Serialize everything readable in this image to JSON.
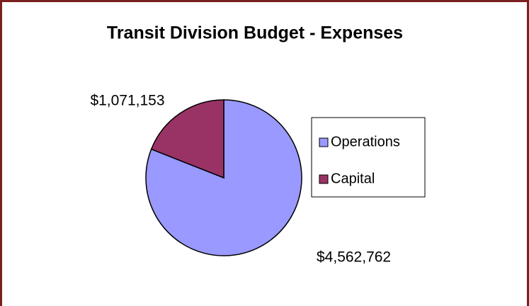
{
  "chart_data": {
    "type": "pie",
    "title": "Transit Division Budget - Expenses",
    "categories": [
      "Operations",
      "Capital"
    ],
    "values": [
      4562762,
      1071153
    ],
    "value_labels": [
      "$4,562,762",
      "$1,071,153"
    ],
    "colors": [
      "#9999ff",
      "#993366"
    ],
    "legend": "right"
  }
}
